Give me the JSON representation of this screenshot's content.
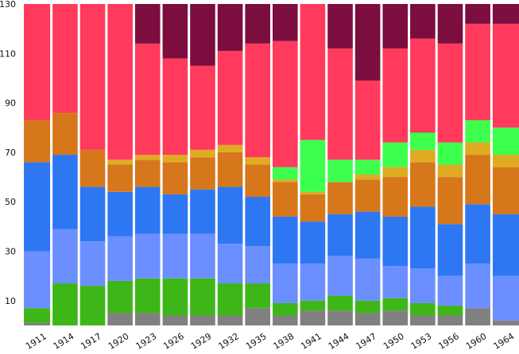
{
  "chart_data": {
    "type": "bar",
    "stacked": true,
    "title": "",
    "xlabel": "",
    "ylabel": "",
    "ylim": [
      0,
      130
    ],
    "yticks": [
      10,
      30,
      50,
      70,
      90,
      110,
      130
    ],
    "grid": false,
    "legend": "none",
    "categories": [
      "1911",
      "1914",
      "1917",
      "1920",
      "1923",
      "1926",
      "1929",
      "1932",
      "1935",
      "1938",
      "1941",
      "1944",
      "1947",
      "1950",
      "1953",
      "1956",
      "1960",
      "1964"
    ],
    "series": [
      {
        "color": "#808080",
        "values": [
          1,
          0,
          0,
          5,
          5,
          4,
          4,
          4,
          7,
          4,
          6,
          6,
          5,
          6,
          4,
          4,
          7,
          2
        ]
      },
      {
        "color": "#3fb618",
        "values": [
          6,
          17,
          16,
          13,
          14,
          15,
          15,
          13,
          10,
          5,
          4,
          6,
          5,
          5,
          5,
          4,
          0,
          0
        ]
      },
      {
        "color": "#6b8fff",
        "values": [
          23,
          22,
          18,
          18,
          18,
          18,
          18,
          16,
          15,
          16,
          15,
          16,
          17,
          13,
          14,
          12,
          18,
          18
        ]
      },
      {
        "color": "#2e77f2",
        "values": [
          36,
          30,
          22,
          18,
          19,
          16,
          18,
          23,
          20,
          19,
          17,
          17,
          19,
          20,
          25,
          21,
          24,
          25
        ]
      },
      {
        "color": "#d6771b",
        "values": [
          17,
          17,
          15,
          11,
          11,
          13,
          13,
          14,
          13,
          14,
          11,
          13,
          13,
          16,
          18,
          19,
          20,
          19
        ]
      },
      {
        "color": "#dfab22",
        "values": [
          0,
          0,
          0,
          2,
          2,
          3,
          3,
          3,
          3,
          1,
          1,
          0,
          2,
          4,
          5,
          5,
          5,
          5
        ]
      },
      {
        "color": "#3dff4d",
        "values": [
          0,
          0,
          0,
          0,
          0,
          0,
          0,
          0,
          0,
          5,
          21,
          9,
          6,
          10,
          7,
          9,
          9,
          11
        ]
      },
      {
        "color": "#ff3a5c",
        "values": [
          47,
          44,
          59,
          63,
          45,
          39,
          34,
          38,
          46,
          51,
          55,
          45,
          32,
          38,
          38,
          40,
          39,
          42
        ]
      },
      {
        "color": "#7b0e3e",
        "values": [
          0,
          0,
          0,
          0,
          16,
          22,
          25,
          19,
          16,
          15,
          0,
          18,
          31,
          18,
          14,
          16,
          8,
          8
        ]
      }
    ]
  }
}
